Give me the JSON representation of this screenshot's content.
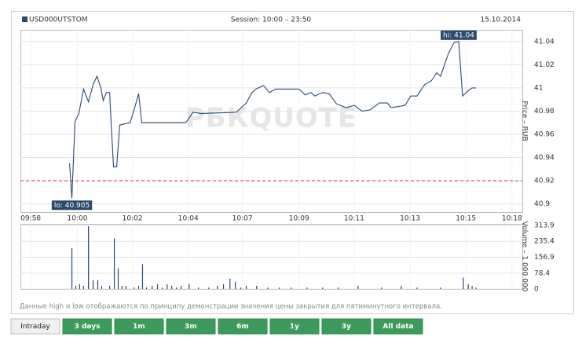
{
  "chart_data": [
    {
      "type": "line",
      "title": "USD000UTSTOM",
      "subtitle": "Session: 10:00 – 23:50",
      "date": "15.10.2014",
      "y_label": "Price – RUB",
      "watermark": "РБКQUOTE",
      "high_label": "hi: 41.04",
      "low_label": "lo: 40.905",
      "reference_line": {
        "value": 40.92,
        "color": "#d03030"
      },
      "xlim": [
        597.8,
        617.2
      ],
      "ylim": [
        40.893,
        41.05
      ],
      "xticks": [
        {
          "value": 598.2,
          "label": "09:58"
        },
        {
          "value": 600,
          "label": "10:00"
        },
        {
          "value": 602.13,
          "label": "10:02"
        },
        {
          "value": 604.29,
          "label": "10:04"
        },
        {
          "value": 606.38,
          "label": "10:07"
        },
        {
          "value": 608.57,
          "label": "10:09"
        },
        {
          "value": 610.7,
          "label": "10:11"
        },
        {
          "value": 612.86,
          "label": "10:13"
        },
        {
          "value": 615.02,
          "label": "10:15"
        },
        {
          "value": 616.8,
          "label": "10:18"
        }
      ],
      "yticks": [
        41.04,
        41.02,
        41,
        40.98,
        40.96,
        40.94,
        40.92,
        40.9
      ],
      "grid": true,
      "series": [
        {
          "color": "#2a4a6e",
          "x": [
            599.7,
            599.79,
            599.91,
            600.06,
            600.24,
            600.43,
            600.61,
            600.76,
            600.91,
            601.0,
            601.12,
            601.25,
            601.31,
            601.4,
            601.52,
            601.64,
            601.82,
            602.04,
            602.19,
            602.37,
            602.49,
            604.19,
            604.32,
            604.47,
            604.77,
            606.14,
            606.53,
            606.75,
            606.9,
            607.2,
            607.42,
            607.66,
            607.96,
            608.57,
            608.81,
            609.03,
            609.18,
            609.48,
            609.73,
            610.03,
            610.4,
            610.7,
            611.0,
            611.31,
            611.67,
            611.98,
            612.13,
            612.67,
            612.89,
            613.13,
            613.43,
            613.68,
            613.89,
            614.04,
            614.19,
            614.35,
            614.56,
            614.74,
            614.89,
            615.08,
            615.26,
            615.41
          ],
          "values": [
            40.935,
            40.905,
            40.971,
            40.978,
            40.999,
            40.988,
            41.003,
            41.01,
            41.0,
            40.989,
            40.996,
            40.996,
            40.968,
            40.932,
            40.932,
            40.968,
            40.969,
            40.97,
            40.981,
            40.995,
            40.97,
            40.97,
            40.974,
            40.979,
            40.978,
            40.979,
            40.987,
            40.996,
            40.999,
            41.002,
            40.996,
            40.999,
            40.999,
            40.999,
            40.994,
            40.996,
            40.993,
            40.996,
            40.995,
            40.986,
            40.983,
            40.985,
            40.98,
            40.981,
            40.987,
            40.987,
            40.983,
            40.985,
            40.993,
            40.993,
            41.003,
            41.006,
            41.013,
            41.01,
            41.02,
            41.03,
            41.039,
            41.04,
            40.993,
            40.997,
            41.0,
            41.0
          ]
        }
      ]
    },
    {
      "type": "bar",
      "y_label": "Volume – 1 000 000",
      "xlim": [
        597.8,
        617.2
      ],
      "ylim": [
        0,
        321.5
      ],
      "yticks": [
        313.9,
        235.4,
        156.9,
        78.4,
        0
      ],
      "color": "#2a4a6e",
      "x": [
        599.79,
        599.94,
        600.09,
        600.24,
        600.43,
        600.61,
        600.79,
        600.94,
        601.25,
        601.43,
        601.58,
        601.73,
        601.88,
        602.19,
        602.37,
        602.52,
        602.67,
        602.89,
        603.1,
        603.28,
        603.47,
        603.65,
        603.83,
        604.01,
        604.32,
        604.68,
        605.08,
        605.41,
        605.65,
        605.9,
        606.11,
        606.32,
        606.53,
        606.93,
        607.36,
        607.81,
        608.27,
        608.88,
        609.48,
        610.09,
        610.85,
        611.76,
        612.52,
        613.13,
        614.04,
        614.92,
        615.11,
        615.26,
        615.41
      ],
      "values": [
        202,
        16,
        24,
        16,
        310,
        44,
        44,
        16,
        16,
        250,
        103,
        16,
        16,
        8,
        16,
        123,
        8,
        16,
        24,
        8,
        24,
        16,
        8,
        16,
        24,
        8,
        8,
        16,
        24,
        52,
        36,
        8,
        16,
        16,
        8,
        8,
        8,
        8,
        8,
        8,
        16,
        8,
        16,
        8,
        8,
        56,
        24,
        16,
        8
      ]
    }
  ],
  "note": "Данные high и low отображаются по принципу демонстрации значения цены закрытия для пятиминутного интервала.",
  "tabs": [
    "Intraday",
    "3 days",
    "1m",
    "3m",
    "6m",
    "1y",
    "3y",
    "All data"
  ]
}
